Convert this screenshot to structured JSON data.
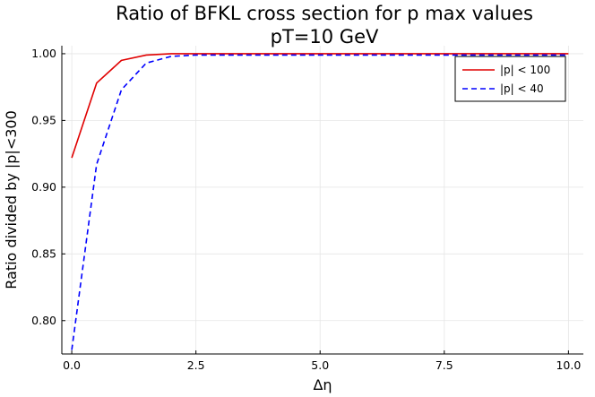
{
  "chart_data": {
    "type": "line",
    "title": "Ratio of BFKL cross section for p max values",
    "subtitle": "pT=10 GeV",
    "xlabel": "Δη",
    "ylabel": "Ratio divided by |p|<300",
    "xlim": [
      -0.2,
      10.3
    ],
    "ylim": [
      0.775,
      1.006
    ],
    "xticks": [
      0.0,
      2.5,
      5.0,
      7.5,
      10.0
    ],
    "xtick_labels": [
      "0.0",
      "2.5",
      "5.0",
      "7.5",
      "10.0"
    ],
    "yticks": [
      0.8,
      0.85,
      0.9,
      0.95,
      1.0
    ],
    "ytick_labels": [
      "0.80",
      "0.85",
      "0.90",
      "0.95",
      "1.00"
    ],
    "grid": true,
    "legend_position": "top-right",
    "series": [
      {
        "name": "|p| < 100",
        "color": "#e00000",
        "dash": "solid",
        "x": [
          0.0,
          0.5,
          1.0,
          1.5,
          2.0,
          2.5,
          3.0,
          3.5,
          4.0,
          4.5,
          5.0,
          5.5,
          6.0,
          6.5,
          7.0,
          7.5,
          8.0,
          8.5,
          9.0,
          9.5,
          10.0
        ],
        "y": [
          0.922,
          0.978,
          0.995,
          0.999,
          1.0,
          1.0,
          1.0,
          1.0,
          1.0,
          1.0,
          1.0,
          1.0,
          1.0,
          1.0,
          1.0,
          1.0,
          1.0,
          1.0,
          1.0,
          1.0,
          1.0
        ]
      },
      {
        "name": "|p| < 40",
        "color": "#0000ff",
        "dash": "dashed",
        "x": [
          0.0,
          0.5,
          1.0,
          1.5,
          2.0,
          2.5,
          3.0,
          3.5,
          4.0,
          4.5,
          5.0,
          5.5,
          6.0,
          6.5,
          7.0,
          7.5,
          8.0,
          8.5,
          9.0,
          9.5,
          10.0
        ],
        "y": [
          0.778,
          0.917,
          0.973,
          0.993,
          0.998,
          0.999,
          0.999,
          0.999,
          0.999,
          0.999,
          0.999,
          0.999,
          0.999,
          0.999,
          0.999,
          0.999,
          0.999,
          0.999,
          0.999,
          0.999,
          0.999
        ]
      }
    ]
  }
}
